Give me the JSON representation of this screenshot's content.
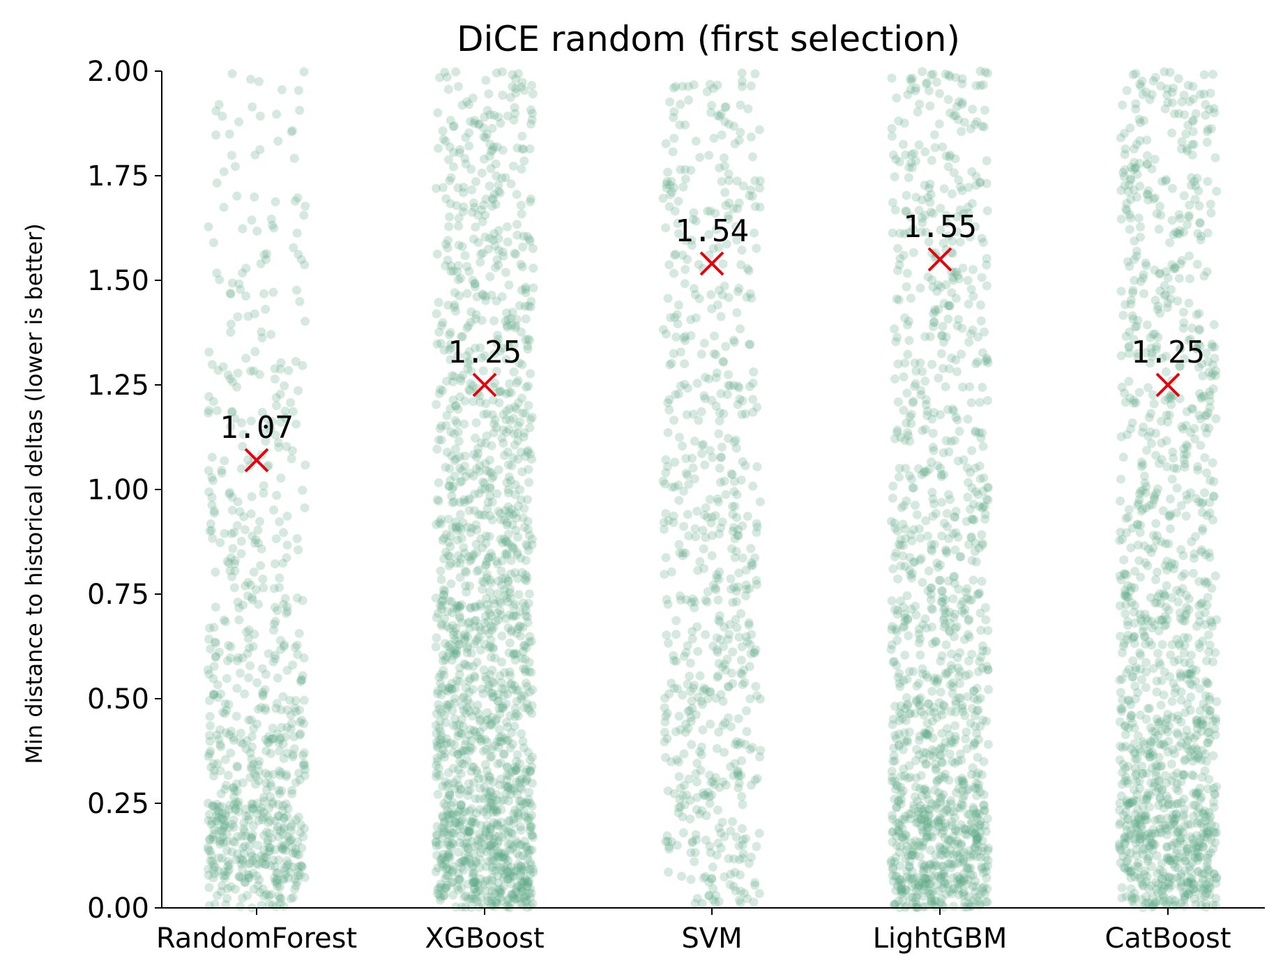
{
  "chart_data": {
    "type": "scatter",
    "title": "DiCE random (first selection)",
    "xlabel": "",
    "ylabel": "Min distance to historical deltas (lower is better)",
    "categories": [
      "RandomForest",
      "XGBoost",
      "SVM",
      "LightGBM",
      "CatBoost"
    ],
    "ylim": [
      0,
      2.0
    ],
    "yticks": [
      "0.00",
      "0.25",
      "0.50",
      "0.75",
      "1.00",
      "1.25",
      "1.50",
      "1.75",
      "2.00"
    ],
    "grid": false,
    "point_color": "#5aa883",
    "marker_color": "#e8000b",
    "markers": [
      {
        "category": "RandomForest",
        "value": 1.07,
        "label": "1.07"
      },
      {
        "category": "XGBoost",
        "value": 1.25,
        "label": "1.25"
      },
      {
        "category": "SVM",
        "value": 1.54,
        "label": "1.54"
      },
      {
        "category": "LightGBM",
        "value": 1.55,
        "label": "1.55"
      },
      {
        "category": "CatBoost",
        "value": 1.25,
        "label": "1.25"
      }
    ],
    "distribution": {
      "RandomForest": {
        "counts": [
          280,
          150,
          90,
          70,
          55,
          40,
          30,
          25
        ],
        "sparse_above": 0
      },
      "XGBoost": {
        "counts": [
          420,
          260,
          240,
          180,
          150,
          110,
          100,
          90
        ],
        "sparse_above": 0
      },
      "SVM": {
        "counts": [
          90,
          100,
          100,
          90,
          80,
          60,
          70,
          55
        ],
        "sparse_above": 0
      },
      "LightGBM": {
        "counts": [
          400,
          200,
          150,
          120,
          90,
          80,
          90,
          80
        ],
        "sparse_above": 0
      },
      "CatBoost": {
        "counts": [
          360,
          230,
          160,
          120,
          100,
          90,
          95,
          90
        ],
        "sparse_above": 0
      }
    }
  }
}
